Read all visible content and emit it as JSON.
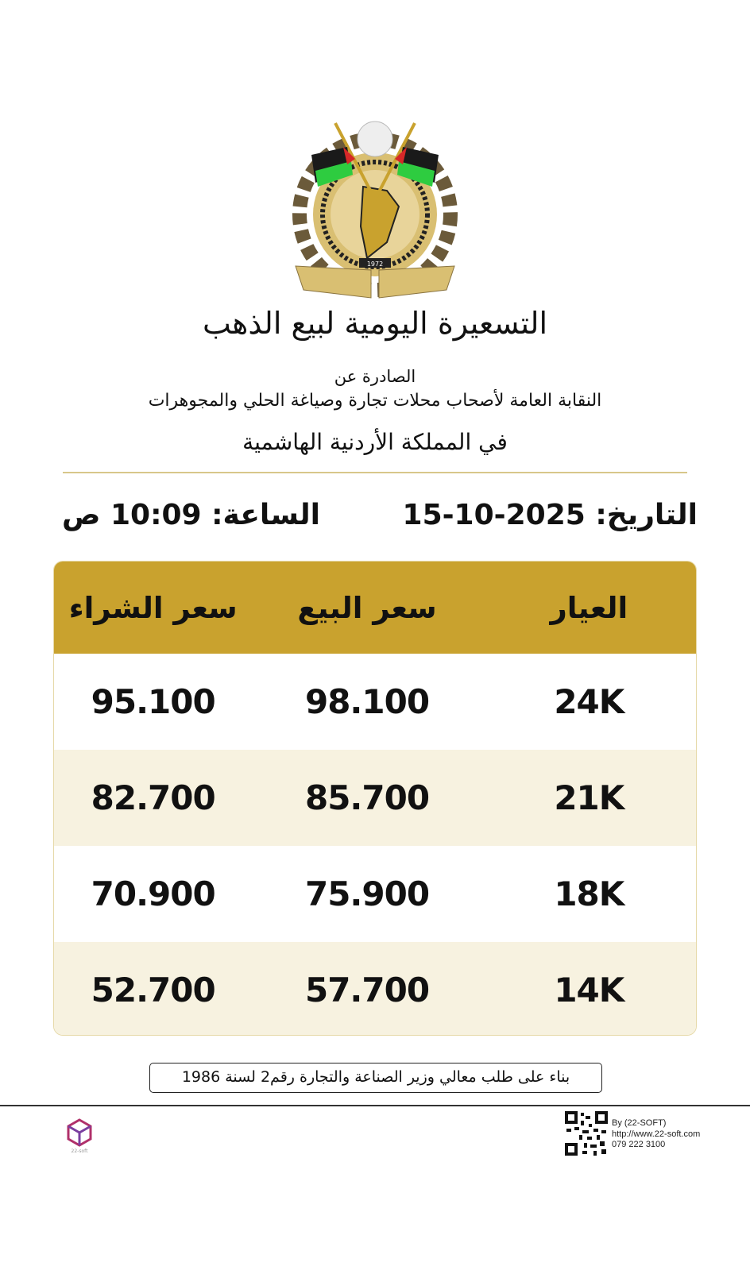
{
  "logo": {
    "name": "jordan-jewelers-syndicate-logo",
    "text": "النقابة العامة لأصحاب محلات تجارة وصياغة الحلي والمجوهرات",
    "year": "1972"
  },
  "header": {
    "title": "التسعيرة اليومية لبيع الذهب",
    "issued_by": "الصادرة عن",
    "organization": "النقابة العامة لأصحاب محلات تجارة وصياغة الحلي والمجوهرات",
    "country": "في المملكة الأردنية الهاشمية"
  },
  "datetime": {
    "date_label": "التاريخ:",
    "date": "15-10-2025",
    "time_label": "الساعة:",
    "time": "10:09 ص"
  },
  "table": {
    "headers": [
      "العيار",
      "سعر البيع",
      "سعر الشراء"
    ],
    "rows": [
      [
        "24K",
        "98.100",
        "95.100"
      ],
      [
        "21K",
        "85.700",
        "82.700"
      ],
      [
        "18K",
        "75.900",
        "70.900"
      ],
      [
        "14K",
        "57.700",
        "52.700"
      ]
    ]
  },
  "note": "بناء على طلب معالي وزير الصناعة والتجارة رقم2 لسنة 1986",
  "footer": {
    "by": "By (22-SOFT)",
    "url": "http://www.22-soft.com",
    "phone": "079 222 3100",
    "brand": "22-soft"
  },
  "colors": {
    "gold": "#C9A22E",
    "cream": "#F7F2E0"
  }
}
